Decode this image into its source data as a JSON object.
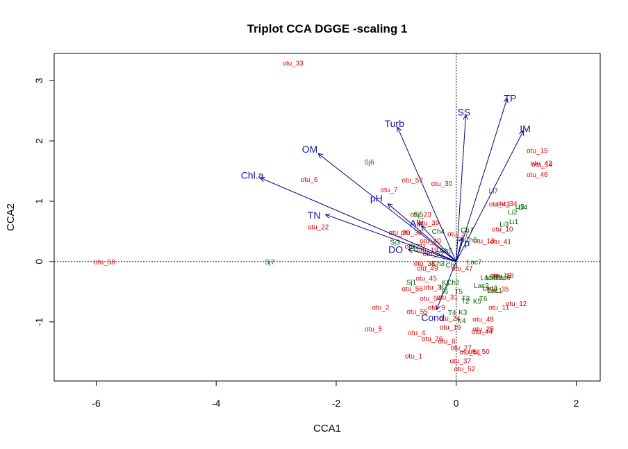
{
  "chart_data": {
    "type": "scatter",
    "title": "Triplot CCA DGGE -scaling 1",
    "xlabel": "CCA1",
    "ylabel": "CCA2",
    "xlim": [
      -6.7,
      2.4
    ],
    "ylim": [
      -1.98,
      3.45
    ],
    "xticks": [
      -6,
      -4,
      -2,
      0,
      2
    ],
    "yticks": [
      -1,
      0,
      1,
      2,
      3
    ],
    "xtick_labels": [
      "-6",
      "-4",
      "-2",
      "0",
      "2"
    ],
    "ytick_labels": [
      "-1",
      "0",
      "1",
      "2",
      "3"
    ],
    "reference_lines": {
      "x": 0,
      "y": 0,
      "style": "dotted"
    },
    "colors": {
      "species": "#dd0000",
      "sites": "#006400",
      "env": "#1010b0",
      "arrow": "#000080"
    },
    "species": [
      {
        "label": "otu_33",
        "x": -2.72,
        "y": 3.28
      },
      {
        "label": "otu_15",
        "x": 1.35,
        "y": 1.83
      },
      {
        "label": "otu_42",
        "x": 1.42,
        "y": 1.62
      },
      {
        "label": "otu_14",
        "x": 1.43,
        "y": 1.6
      },
      {
        "label": "otu_46",
        "x": 1.35,
        "y": 1.43
      },
      {
        "label": "otu_6",
        "x": -2.45,
        "y": 1.35
      },
      {
        "label": "otu_57",
        "x": -0.73,
        "y": 1.34
      },
      {
        "label": "otu_30",
        "x": -0.24,
        "y": 1.28
      },
      {
        "label": "otu_7",
        "x": -1.12,
        "y": 1.18
      },
      {
        "label": "otu_43",
        "x": 0.72,
        "y": 0.94
      },
      {
        "label": "otu_34",
        "x": 0.84,
        "y": 0.95
      },
      {
        "label": "otu_23",
        "x": -0.59,
        "y": 0.77
      },
      {
        "label": "otu_39",
        "x": -0.46,
        "y": 0.63
      },
      {
        "label": "otu_22",
        "x": -2.3,
        "y": 0.56
      },
      {
        "label": "otu_10",
        "x": 0.77,
        "y": 0.53
      },
      {
        "label": "otu_20",
        "x": -0.95,
        "y": 0.47
      },
      {
        "label": "otu_36",
        "x": -0.75,
        "y": 0.47
      },
      {
        "label": "otu_17",
        "x": 0.03,
        "y": 0.45
      },
      {
        "label": "otu_13",
        "x": 0.46,
        "y": 0.33
      },
      {
        "label": "otu_41",
        "x": 0.74,
        "y": 0.32
      },
      {
        "label": "otu_40",
        "x": -0.43,
        "y": 0.33
      },
      {
        "label": "otu_21",
        "x": -0.68,
        "y": 0.24
      },
      {
        "label": "otu_19",
        "x": -0.48,
        "y": 0.18
      },
      {
        "label": "otu_32",
        "x": -0.38,
        "y": 0.12
      },
      {
        "label": "otu_58",
        "x": -5.86,
        "y": -0.02
      },
      {
        "label": "otu_38",
        "x": -0.53,
        "y": -0.04
      },
      {
        "label": "otu_49",
        "x": -0.48,
        "y": -0.12
      },
      {
        "label": "otu_47",
        "x": 0.1,
        "y": -0.12
      },
      {
        "label": "otu_16",
        "x": 0.74,
        "y": -0.24
      },
      {
        "label": "otu_18",
        "x": 0.78,
        "y": -0.25
      },
      {
        "label": "otu_45",
        "x": -0.5,
        "y": -0.29
      },
      {
        "label": "otu_3",
        "x": -0.4,
        "y": -0.44
      },
      {
        "label": "otu_35",
        "x": 0.7,
        "y": -0.47
      },
      {
        "label": "otu_56",
        "x": -0.73,
        "y": -0.46
      },
      {
        "label": "otu_31",
        "x": -0.15,
        "y": -0.6
      },
      {
        "label": "otu_54",
        "x": -0.43,
        "y": -0.62
      },
      {
        "label": "otu_12",
        "x": 1.0,
        "y": -0.71
      },
      {
        "label": "otu_2",
        "x": -1.26,
        "y": -0.77
      },
      {
        "label": "otu_9",
        "x": -0.33,
        "y": -0.77
      },
      {
        "label": "otu_11",
        "x": 0.71,
        "y": -0.77
      },
      {
        "label": "otu_55",
        "x": -0.65,
        "y": -0.84
      },
      {
        "label": "otu_24",
        "x": -0.11,
        "y": -0.95
      },
      {
        "label": "otu_48",
        "x": 0.45,
        "y": -0.97
      },
      {
        "label": "otu_19",
        "x": -0.1,
        "y": -1.1
      },
      {
        "label": "otu_25",
        "x": 0.45,
        "y": -1.13
      },
      {
        "label": "otu_44",
        "x": 0.43,
        "y": -1.17
      },
      {
        "label": "otu_5",
        "x": -1.38,
        "y": -1.13
      },
      {
        "label": "otu_4",
        "x": -0.66,
        "y": -1.19
      },
      {
        "label": "otu_26",
        "x": -0.4,
        "y": -1.29
      },
      {
        "label": "otu_8",
        "x": -0.16,
        "y": -1.33
      },
      {
        "label": "otu_27",
        "x": 0.08,
        "y": -1.44
      },
      {
        "label": "otu_51",
        "x": 0.23,
        "y": -1.51
      },
      {
        "label": "otu_50",
        "x": 0.38,
        "y": -1.5
      },
      {
        "label": "otu_1",
        "x": -0.71,
        "y": -1.58
      },
      {
        "label": "otu_37",
        "x": 0.07,
        "y": -1.66
      },
      {
        "label": "otu_52",
        "x": 0.14,
        "y": -1.79
      }
    ],
    "sites": [
      {
        "label": "Sj6",
        "x": -1.45,
        "y": 1.64
      },
      {
        "label": "Li7",
        "x": 0.62,
        "y": 1.16
      },
      {
        "label": "Li5",
        "x": 1.06,
        "y": 0.9
      },
      {
        "label": "Li4",
        "x": 1.11,
        "y": 0.89
      },
      {
        "label": "Li2",
        "x": 0.94,
        "y": 0.81
      },
      {
        "label": "Li1",
        "x": 0.96,
        "y": 0.65
      },
      {
        "label": "Li3",
        "x": 0.8,
        "y": 0.61
      },
      {
        "label": "Sj5",
        "x": -0.63,
        "y": 0.77
      },
      {
        "label": "Ch4",
        "x": -0.3,
        "y": 0.49
      },
      {
        "label": "Ch7",
        "x": 0.18,
        "y": 0.51
      },
      {
        "label": "Ch6",
        "x": 0.24,
        "y": 0.35
      },
      {
        "label": "Sj3",
        "x": -1.02,
        "y": 0.31
      },
      {
        "label": "Sj2",
        "x": -0.7,
        "y": 0.24
      },
      {
        "label": "Ch5",
        "x": -0.17,
        "y": 0.17
      },
      {
        "label": "Sj7",
        "x": -3.11,
        "y": -0.02
      },
      {
        "label": "Ch3",
        "x": -0.3,
        "y": -0.04
      },
      {
        "label": "Lac7",
        "x": 0.3,
        "y": -0.02
      },
      {
        "label": "Ch1",
        "x": -0.07,
        "y": -0.07
      },
      {
        "label": "Sj1",
        "x": -0.75,
        "y": -0.35
      },
      {
        "label": "Lac4",
        "x": 0.53,
        "y": -0.28
      },
      {
        "label": "Lac5",
        "x": 0.62,
        "y": -0.27
      },
      {
        "label": "Lac6",
        "x": 0.78,
        "y": -0.27
      },
      {
        "label": "Lac2",
        "x": 0.42,
        "y": -0.41
      },
      {
        "label": "Lac3",
        "x": 0.56,
        "y": -0.45
      },
      {
        "label": "Lac1",
        "x": 0.64,
        "y": -0.49
      },
      {
        "label": "Ch2",
        "x": -0.05,
        "y": -0.36
      },
      {
        "label": "K1",
        "x": -0.17,
        "y": -0.36
      },
      {
        "label": "K7",
        "x": -0.2,
        "y": -0.43
      },
      {
        "label": "T5",
        "x": 0.04,
        "y": -0.51
      },
      {
        "label": "T6",
        "x": -0.2,
        "y": -0.51
      },
      {
        "label": "T3",
        "x": 0.16,
        "y": -0.62
      },
      {
        "label": "T6",
        "x": 0.45,
        "y": -0.63
      },
      {
        "label": "T2",
        "x": 0.15,
        "y": -0.67
      },
      {
        "label": "K5",
        "x": 0.35,
        "y": -0.67
      },
      {
        "label": "K3",
        "x": 0.11,
        "y": -0.85
      },
      {
        "label": "T4",
        "x": -0.07,
        "y": -0.86
      },
      {
        "label": "K4",
        "x": 0.09,
        "y": -0.99
      }
    ],
    "env_vectors": [
      {
        "label": "TP",
        "x": 0.85,
        "y": 2.71
      },
      {
        "label": "SS",
        "x": 0.16,
        "y": 2.43
      },
      {
        "label": "IM",
        "x": 1.12,
        "y": 2.17
      },
      {
        "label": "Turb",
        "x": -0.98,
        "y": 2.23
      },
      {
        "label": "OM",
        "x": -2.3,
        "y": 1.79
      },
      {
        "label": "Chl.a",
        "x": -3.27,
        "y": 1.39
      },
      {
        "label": "pH",
        "x": -1.14,
        "y": 0.96
      },
      {
        "label": "TN",
        "x": -2.18,
        "y": 0.78
      },
      {
        "label": "Alk",
        "x": -0.58,
        "y": 0.59
      },
      {
        "label": "Tp",
        "x": 0.1,
        "y": 0.4
      },
      {
        "label": "DO",
        "x": -0.8,
        "y": 0.2
      },
      {
        "label": "Cond",
        "x": -0.33,
        "y": -0.8
      }
    ],
    "env_label_pos": [
      {
        "x": 0.9,
        "y": 2.71
      },
      {
        "x": 0.13,
        "y": 2.48
      },
      {
        "x": 1.15,
        "y": 2.2
      },
      {
        "x": -1.03,
        "y": 2.29
      },
      {
        "x": -2.44,
        "y": 1.86
      },
      {
        "x": -3.4,
        "y": 1.43
      },
      {
        "x": -1.33,
        "y": 1.05
      },
      {
        "x": -2.37,
        "y": 0.77
      },
      {
        "x": -0.66,
        "y": 0.64
      },
      {
        "x": 0.13,
        "y": 0.31
      },
      {
        "x": -1.01,
        "y": 0.2
      },
      {
        "x": -0.39,
        "y": -0.93
      }
    ]
  }
}
